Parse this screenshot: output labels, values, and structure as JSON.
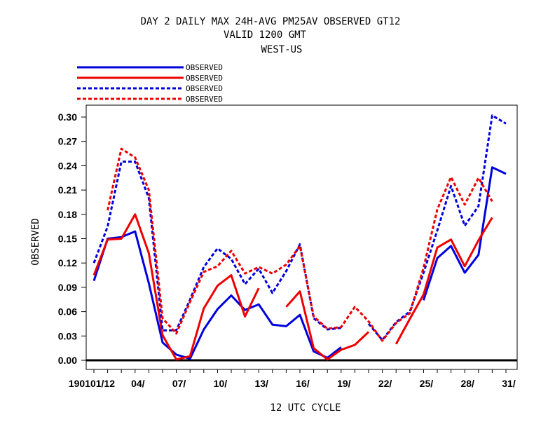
{
  "chart_data": {
    "type": "line",
    "title_lines": [
      "DAY 2 DAILY MAX   24H-AVG PM25AV OBSERVED GT12",
      "VALID 1200 GMT",
      "WEST-US"
    ],
    "xlabel": "12 UTC CYCLE",
    "ylabel": "OBSERVED",
    "ylim": [
      0,
      0.31
    ],
    "xlim": [
      0.5,
      31.5
    ],
    "yticks": [
      0.0,
      0.03,
      0.06,
      0.09,
      0.12,
      0.15,
      0.18,
      0.21,
      0.24,
      0.27,
      0.3
    ],
    "ytick_labels": [
      "0.00",
      "0.03",
      "0.06",
      "0.09",
      "0.12",
      "0.15",
      "0.18",
      "0.21",
      "0.24",
      "0.27",
      "0.30"
    ],
    "xticks": [
      1,
      4,
      7,
      10,
      13,
      16,
      19,
      22,
      25,
      28,
      31
    ],
    "xtick_labels": [
      "190101/12",
      "04/",
      "07/",
      "10/",
      "13/",
      "16/",
      "19/",
      "22/",
      "25/",
      "28/",
      "31/"
    ],
    "x": [
      1,
      2,
      3,
      4,
      5,
      6,
      7,
      8,
      9,
      10,
      11,
      12,
      13,
      14,
      15,
      16,
      17,
      18,
      19,
      20,
      21,
      22,
      23,
      24,
      25,
      26,
      27,
      28,
      29,
      30,
      31
    ],
    "legend_placement": "top-left",
    "grid": false,
    "series": [
      {
        "name": "OBSERVED",
        "color": "#0000dd",
        "style": "solid",
        "values": [
          0.098,
          0.15,
          0.152,
          0.159,
          0.095,
          0.022,
          0.007,
          0.002,
          0.038,
          0.063,
          0.08,
          0.062,
          0.069,
          0.044,
          0.042,
          0.056,
          0.011,
          0.003,
          0.016,
          null,
          null,
          0.0,
          null,
          null,
          0.074,
          0.126,
          0.141,
          0.108,
          0.13,
          0.238,
          0.23
        ]
      },
      {
        "name": "OBSERVED",
        "color": "#ee0000",
        "style": "solid",
        "values": [
          0.105,
          0.149,
          0.15,
          0.18,
          0.132,
          0.031,
          0.001,
          0.005,
          0.064,
          0.092,
          0.105,
          0.054,
          0.089,
          null,
          0.066,
          0.085,
          0.015,
          0.001,
          0.013,
          0.019,
          0.035,
          null,
          0.02,
          0.051,
          0.081,
          0.139,
          0.149,
          0.116,
          0.148,
          0.176,
          null
        ]
      },
      {
        "name": "OBSERVED",
        "color": "#0000dd",
        "style": "dashed",
        "values": [
          0.12,
          0.165,
          0.245,
          0.245,
          0.2,
          0.037,
          0.037,
          0.075,
          0.115,
          0.138,
          0.125,
          0.094,
          0.113,
          0.083,
          0.11,
          0.143,
          0.052,
          0.038,
          0.04,
          null,
          0.045,
          0.025,
          0.047,
          0.06,
          0.108,
          0.16,
          0.215,
          0.166,
          0.19,
          0.302,
          0.292
        ]
      },
      {
        "name": "OBSERVED",
        "color": "#ee0000",
        "style": "dashed",
        "values": [
          null,
          0.185,
          0.261,
          0.25,
          0.21,
          0.052,
          0.033,
          0.072,
          0.109,
          0.116,
          0.135,
          0.107,
          0.115,
          0.107,
          0.118,
          0.141,
          0.054,
          0.039,
          0.041,
          0.066,
          0.048,
          0.024,
          0.046,
          0.058,
          0.114,
          0.186,
          0.226,
          0.192,
          0.225,
          0.196,
          null
        ]
      }
    ]
  }
}
